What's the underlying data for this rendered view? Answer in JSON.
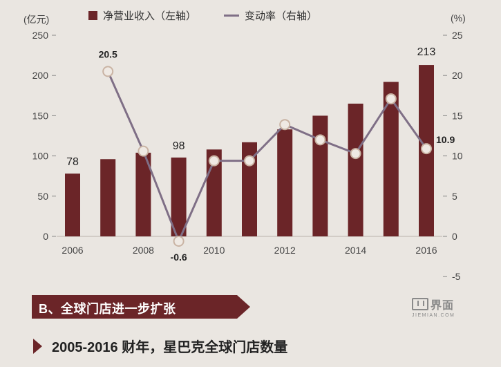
{
  "chart_data": {
    "type": "bar+line",
    "x": [
      2006,
      2007,
      2008,
      2009,
      2010,
      2011,
      2012,
      2013,
      2014,
      2015,
      2016
    ],
    "x_tick_labels": [
      "2006",
      "2008",
      "2010",
      "2012",
      "2014",
      "2016"
    ],
    "series": [
      {
        "name": "净营业收入（左轴）",
        "type": "bar",
        "axis": "left",
        "color": "#6b2528",
        "values": [
          78,
          96,
          104,
          98,
          108,
          117,
          133,
          150,
          165,
          192,
          213
        ]
      },
      {
        "name": "变动率（右轴）",
        "type": "line",
        "axis": "right",
        "color": "#7f6f86",
        "values": [
          null,
          20.5,
          10.6,
          -0.6,
          9.4,
          9.4,
          13.9,
          12.0,
          10.3,
          17.1,
          10.9
        ]
      }
    ],
    "data_labels": [
      {
        "series": 0,
        "x": 2006,
        "text": "78"
      },
      {
        "series": 1,
        "x": 2007,
        "text": "20.5"
      },
      {
        "series": 0,
        "x": 2009,
        "text": "98"
      },
      {
        "series": 1,
        "x": 2009,
        "text": "-0.6"
      },
      {
        "series": 0,
        "x": 2016,
        "text": "213"
      },
      {
        "series": 1,
        "x": 2016,
        "text": "10.9"
      }
    ],
    "y_left": {
      "unit": "(亿元)",
      "range": [
        0,
        250
      ],
      "ticks": [
        0,
        50,
        100,
        150,
        200,
        250
      ]
    },
    "y_right": {
      "unit": "(%)",
      "range": [
        -5,
        25
      ],
      "ticks": [
        -5,
        0,
        5,
        10,
        15,
        20,
        25
      ]
    },
    "grid": false,
    "legend_position": "top-center"
  },
  "section_title": "B、全球门店进一步扩张",
  "subtitle": "2005-2016 财年，星巴克全球门店数量",
  "watermark": {
    "main": "界面",
    "sub": "JIEMIAN.COM"
  }
}
